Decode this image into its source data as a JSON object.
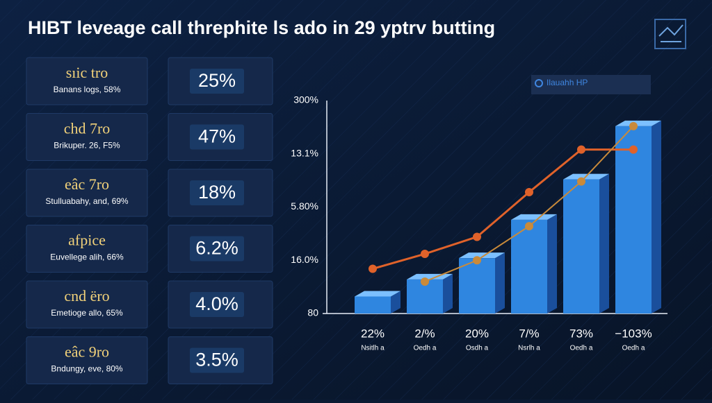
{
  "header": {
    "title": "HIBT leveage call threphite ls ado in 29 yptrv butting"
  },
  "cards": [
    {
      "title": "sıic tro",
      "subtitle": "Banans logs, 58%",
      "value": "25%"
    },
    {
      "title": "chd 7ro",
      "subtitle": "Brikuper. 26, F5%",
      "value": "47%"
    },
    {
      "title": "eâc 7ro",
      "subtitle": "Stulluabahy, and, 69%",
      "value": "18%"
    },
    {
      "title": "afpice",
      "subtitle": "Euvellege alih, 66%",
      "value": "6.2%"
    },
    {
      "title": "cnd ëro",
      "subtitle": "Emetioge allo, 65%",
      "value": "4.0%"
    },
    {
      "title": "eâc 9ro",
      "subtitle": "Bndungy, eve, 80%",
      "value": "3.5%"
    }
  ],
  "chart_data": {
    "type": "bar",
    "legend_label": "Ilauahh HP",
    "y_axis_labels": [
      "300%",
      "13.1%",
      "5.80%",
      "16.0%",
      "80"
    ],
    "categories": [
      "22%",
      "2/%",
      "20%",
      "7/%",
      "73%",
      "−103%"
    ],
    "category_sublabels": [
      "Nsitlh a",
      "Oedh a",
      "Osdh a",
      "Nsrlh a",
      "Oedh a",
      "Oedh a"
    ],
    "ylim": [
      0,
      100
    ],
    "values": [
      8,
      16,
      26,
      44,
      63,
      88
    ],
    "color": "#2f86e0",
    "lines": [
      {
        "color": "#e0622a",
        "values": [
          21,
          28,
          36,
          57,
          77,
          77
        ]
      },
      {
        "color": "#c98a3a",
        "values": [
          null,
          15,
          25,
          41,
          62,
          88
        ]
      }
    ]
  }
}
